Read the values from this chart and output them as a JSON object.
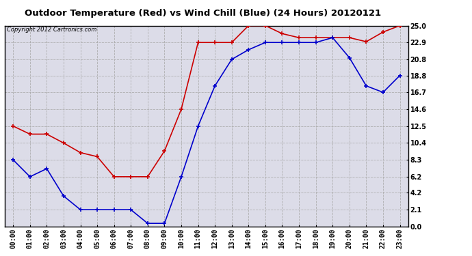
{
  "title": "Outdoor Temperature (Red) vs Wind Chill (Blue) (24 Hours) 20120121",
  "copyright": "Copyright 2012 Cartronics.com",
  "hours": [
    "00:00",
    "01:00",
    "02:00",
    "03:00",
    "04:00",
    "05:00",
    "06:00",
    "07:00",
    "08:00",
    "09:00",
    "10:00",
    "11:00",
    "12:00",
    "13:00",
    "14:00",
    "15:00",
    "16:00",
    "17:00",
    "18:00",
    "19:00",
    "20:00",
    "21:00",
    "22:00",
    "23:00"
  ],
  "temp_red": [
    12.5,
    11.5,
    11.5,
    10.4,
    9.2,
    8.7,
    6.2,
    6.2,
    6.2,
    9.4,
    14.6,
    22.9,
    22.9,
    22.9,
    25.0,
    25.0,
    24.0,
    23.5,
    23.5,
    23.5,
    23.5,
    23.0,
    24.2,
    25.0
  ],
  "wind_chill_blue": [
    8.3,
    6.2,
    7.2,
    3.8,
    2.1,
    2.1,
    2.1,
    2.1,
    0.4,
    0.4,
    6.2,
    12.5,
    17.5,
    20.8,
    22.0,
    22.9,
    22.9,
    22.9,
    22.9,
    23.5,
    21.0,
    17.5,
    16.7,
    18.8
  ],
  "ylim": [
    0.0,
    25.0
  ],
  "yticks": [
    0.0,
    2.1,
    4.2,
    6.2,
    8.3,
    10.4,
    12.5,
    14.6,
    16.7,
    18.8,
    20.8,
    22.9,
    25.0
  ],
  "red_color": "#cc0000",
  "blue_color": "#0000cc",
  "bg_color": "#dcdce8",
  "grid_color": "#aaaaaa",
  "outer_bg": "#ffffff",
  "title_fontsize": 9.5,
  "copyright_fontsize": 6,
  "tick_fontsize": 7,
  "marker_size": 4,
  "linewidth": 1.2
}
